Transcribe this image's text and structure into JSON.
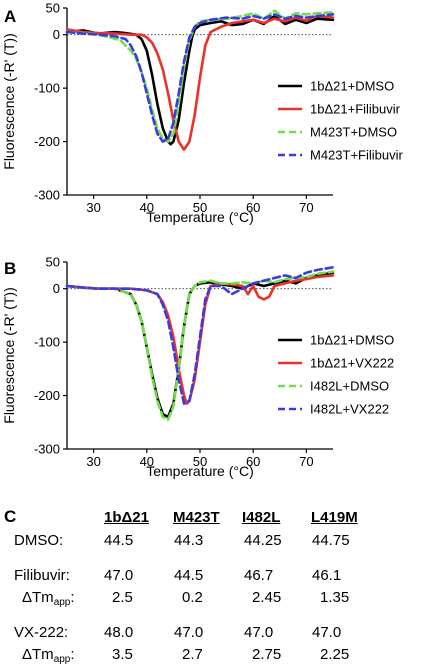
{
  "chart_data": [
    {
      "panel": "A",
      "type": "line",
      "xlabel": "Temperature (°C)",
      "ylabel": "Fluorescence (-R' (T))",
      "xlim": [
        25,
        75
      ],
      "ylim": [
        -300,
        50
      ],
      "xticks": [
        "30",
        "40",
        "50",
        "60",
        "70"
      ],
      "yticks": [
        "50",
        "0",
        "-100",
        "-200",
        "-300"
      ],
      "grid": false,
      "zero_line": "dotted",
      "legend_position": "right",
      "series": [
        {
          "name": "1bΔ21+DMSO",
          "color": "#000000",
          "dash": "solid",
          "x": [
            25,
            28,
            31,
            34,
            36,
            38,
            39,
            40,
            41,
            42,
            43,
            44,
            44.5,
            45,
            46,
            47,
            48,
            48.5,
            49,
            50,
            52,
            54,
            56,
            58,
            60,
            62,
            64,
            66,
            68,
            70,
            72,
            75
          ],
          "y": [
            5,
            8,
            2,
            5,
            3,
            0,
            -8,
            -30,
            -75,
            -130,
            -175,
            -200,
            -205,
            -200,
            -160,
            -90,
            -30,
            -5,
            10,
            18,
            22,
            25,
            18,
            20,
            28,
            20,
            35,
            20,
            28,
            22,
            30,
            28
          ]
        },
        {
          "name": "1bΔ21+Filibuvir",
          "color": "#e8322a",
          "dash": "solid",
          "x": [
            25,
            28,
            31,
            34,
            37,
            39,
            40,
            41,
            42,
            43,
            44,
            45,
            46,
            47,
            48,
            49,
            50,
            51,
            52,
            54,
            56,
            58,
            60,
            62,
            64,
            66,
            68,
            70,
            72,
            75
          ],
          "y": [
            10,
            5,
            3,
            2,
            0,
            0,
            -5,
            -15,
            -35,
            -65,
            -110,
            -160,
            -200,
            -215,
            -200,
            -150,
            -80,
            -20,
            5,
            15,
            22,
            25,
            28,
            22,
            30,
            25,
            32,
            26,
            35,
            32
          ]
        },
        {
          "name": "M423T+DMSO",
          "color": "#6fe04a",
          "dash": "dash",
          "x": [
            25,
            28,
            31,
            33,
            35,
            36,
            37,
            38,
            39,
            40,
            41,
            42,
            43,
            44,
            45,
            46,
            47,
            48,
            49,
            50,
            52,
            55,
            58,
            60,
            62,
            64,
            66,
            68,
            70,
            72,
            75
          ],
          "y": [
            5,
            3,
            0,
            -5,
            -10,
            -20,
            -30,
            -45,
            -70,
            -100,
            -140,
            -175,
            -195,
            -200,
            -185,
            -130,
            -60,
            -10,
            15,
            25,
            28,
            30,
            35,
            40,
            30,
            45,
            30,
            40,
            38,
            40,
            42
          ]
        },
        {
          "name": "M423T+Filibuvir",
          "color": "#3b3be6",
          "dash": "dash",
          "x": [
            25,
            28,
            31,
            34,
            36,
            37,
            38,
            39,
            40,
            41,
            42,
            43,
            44,
            45,
            46,
            47,
            48,
            49,
            50,
            52,
            55,
            58,
            60,
            62,
            64,
            66,
            68,
            70,
            72,
            75
          ],
          "y": [
            5,
            2,
            0,
            -3,
            -8,
            -20,
            -40,
            -70,
            -110,
            -150,
            -185,
            -200,
            -195,
            -165,
            -110,
            -50,
            -5,
            15,
            22,
            28,
            32,
            30,
            35,
            30,
            38,
            30,
            35,
            32,
            35,
            38
          ]
        }
      ]
    },
    {
      "panel": "B",
      "type": "line",
      "xlabel": "Temperature (°C)",
      "ylabel": "Fluorescence (-R' (T))",
      "xlim": [
        25,
        75
      ],
      "ylim": [
        -300,
        50
      ],
      "xticks": [
        "30",
        "40",
        "50",
        "60",
        "70"
      ],
      "yticks": [
        "50",
        "0",
        "-100",
        "-200",
        "-300"
      ],
      "grid": false,
      "zero_line": "dotted",
      "legend_position": "right",
      "series": [
        {
          "name": "1bΔ21+DMSO",
          "color": "#000000",
          "dash": "solid",
          "x": [
            25,
            28,
            31,
            34,
            37,
            38,
            39,
            40,
            41,
            42,
            43,
            44,
            45,
            46,
            47,
            48,
            49,
            50,
            52,
            54,
            56,
            58,
            60,
            62,
            64,
            66,
            68,
            70,
            72,
            75
          ],
          "y": [
            5,
            2,
            0,
            0,
            -10,
            -30,
            -60,
            -110,
            -160,
            -205,
            -235,
            -240,
            -215,
            -150,
            -70,
            -10,
            5,
            10,
            12,
            8,
            5,
            0,
            10,
            5,
            10,
            15,
            10,
            20,
            25,
            30
          ]
        },
        {
          "name": "1bΔ21+VX222",
          "color": "#e8322a",
          "dash": "solid",
          "x": [
            25,
            28,
            31,
            34,
            37,
            40,
            42,
            43,
            44,
            45,
            46,
            47,
            47.5,
            48,
            49,
            50,
            51,
            52,
            54,
            56,
            58,
            59,
            60,
            61,
            62,
            63,
            64,
            66,
            68,
            70,
            72,
            75
          ],
          "y": [
            5,
            2,
            0,
            0,
            0,
            -3,
            -10,
            -25,
            -50,
            -90,
            -150,
            -200,
            -215,
            -210,
            -170,
            -100,
            -30,
            5,
            10,
            8,
            5,
            -10,
            5,
            -15,
            -20,
            -15,
            5,
            10,
            15,
            18,
            22,
            25
          ]
        },
        {
          "name": "I482L+DMSO",
          "color": "#6fe04a",
          "dash": "dash",
          "x": [
            25,
            28,
            31,
            34,
            37,
            38,
            39,
            40,
            41,
            42,
            43,
            44,
            45,
            46,
            47,
            48,
            49,
            50,
            52,
            54,
            56,
            58,
            60,
            62,
            64,
            66,
            68,
            70,
            72,
            75
          ],
          "y": [
            5,
            2,
            0,
            0,
            -10,
            -30,
            -60,
            -110,
            -165,
            -210,
            -240,
            -245,
            -220,
            -150,
            -70,
            -10,
            5,
            12,
            15,
            10,
            10,
            12,
            10,
            15,
            12,
            18,
            20,
            22,
            28,
            32
          ]
        },
        {
          "name": "I482L+VX222",
          "color": "#3b3be6",
          "dash": "dash",
          "x": [
            25,
            28,
            31,
            34,
            37,
            40,
            42,
            43,
            44,
            45,
            46,
            47,
            48,
            49,
            50,
            51,
            52,
            54,
            55,
            56,
            57,
            58,
            60,
            62,
            64,
            66,
            68,
            70,
            72,
            75
          ],
          "y": [
            5,
            2,
            0,
            0,
            0,
            -3,
            -10,
            -30,
            -60,
            -110,
            -170,
            -215,
            -210,
            -160,
            -90,
            -20,
            5,
            5,
            -3,
            -10,
            -5,
            0,
            10,
            15,
            20,
            25,
            20,
            30,
            35,
            40
          ]
        }
      ]
    },
    {
      "panel": "C",
      "type": "table",
      "columns": [
        "",
        "1bΔ21",
        "M423T",
        "I482L",
        "L419M"
      ],
      "rows": [
        {
          "label": "DMSO:",
          "values": [
            "44.5",
            "44.3",
            "44.25",
            "44.75"
          ]
        },
        {
          "label": "Filibuvir:",
          "values": [
            "47.0",
            "44.5",
            "46.7",
            "46.1"
          ]
        },
        {
          "label": "ΔTm",
          "label_sub": "app",
          "label_suffix": ":",
          "values": [
            "2.5",
            "0.2",
            "2.45",
            "1.35"
          ]
        },
        {
          "label": "VX-222:",
          "values": [
            "48.0",
            "47.0",
            "47.0",
            "47.0"
          ]
        },
        {
          "label": "ΔTm",
          "label_sub": "app",
          "label_suffix": ":",
          "values": [
            "3.5",
            "2.7",
            "2.75",
            "2.25"
          ]
        }
      ]
    }
  ]
}
